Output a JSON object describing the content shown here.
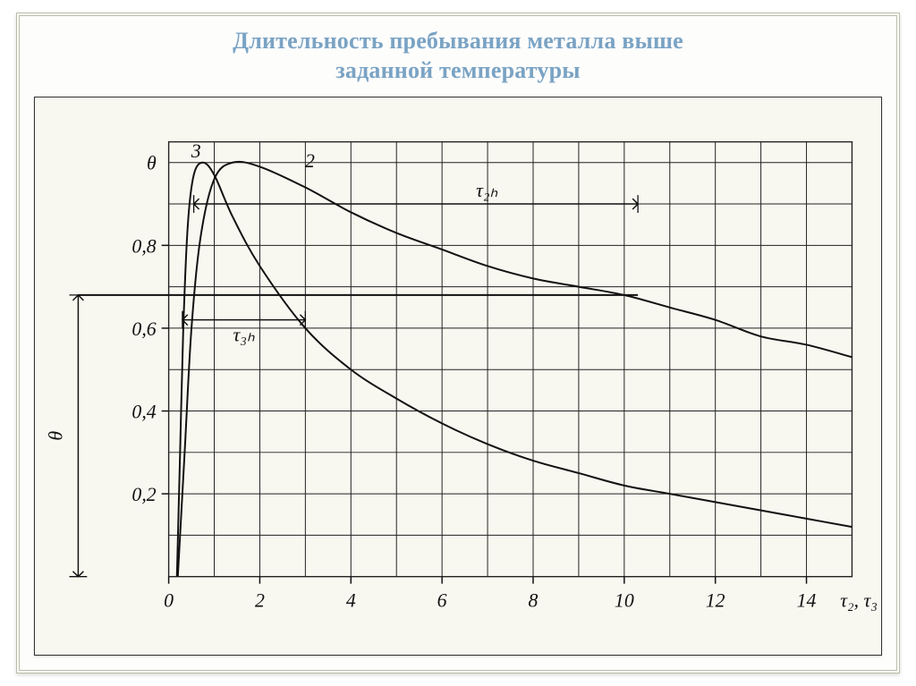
{
  "title_line1": "Длительность пребывания металла выше",
  "title_line2": "заданной температуры",
  "chart": {
    "type": "line",
    "background_color": "#f8f7f0",
    "grid_color": "#222222",
    "axis_color": "#111111",
    "curve_color": "#111111",
    "curve_width": 2.0,
    "xlim": [
      0,
      15
    ],
    "ylim": [
      0,
      1.05
    ],
    "xtick_labels": [
      "0",
      "2",
      "4",
      "6",
      "8",
      "10",
      "12",
      "14"
    ],
    "xtick_values": [
      0,
      2,
      4,
      6,
      8,
      10,
      12,
      14
    ],
    "ytick_labels": [
      "0,2",
      "0,4",
      "0,6",
      "0,8"
    ],
    "ytick_values": [
      0.2,
      0.4,
      0.6,
      0.8
    ],
    "y_top_label": "θ",
    "x_axis_suffix": "τ₂, τ₃",
    "y_axis_marker_label": "θ",
    "annotation_tau2": "τ₂ₕ",
    "annotation_tau3": "τ₃ₕ",
    "curve_label_2": "2",
    "curve_label_3": "3",
    "theta_ref": 0.68,
    "tau2_start": 0.55,
    "tau2_end": 10.3,
    "tau3_start": 0.3,
    "tau3_end": 3.0,
    "tick_fontsize": 22,
    "label_fontsize": 22,
    "series_2": [
      [
        0.2,
        0.0
      ],
      [
        0.35,
        0.3
      ],
      [
        0.5,
        0.6
      ],
      [
        0.7,
        0.82
      ],
      [
        1.0,
        0.96
      ],
      [
        1.4,
        1.0
      ],
      [
        2.0,
        0.99
      ],
      [
        3.0,
        0.94
      ],
      [
        4.0,
        0.88
      ],
      [
        5.0,
        0.83
      ],
      [
        6.0,
        0.79
      ],
      [
        7.0,
        0.75
      ],
      [
        8.0,
        0.72
      ],
      [
        9.0,
        0.7
      ],
      [
        10.0,
        0.68
      ],
      [
        11.0,
        0.65
      ],
      [
        12.0,
        0.62
      ],
      [
        13.0,
        0.58
      ],
      [
        14.0,
        0.56
      ],
      [
        15.0,
        0.53
      ]
    ],
    "series_3": [
      [
        0.18,
        0.0
      ],
      [
        0.25,
        0.3
      ],
      [
        0.32,
        0.6
      ],
      [
        0.42,
        0.85
      ],
      [
        0.55,
        0.97
      ],
      [
        0.75,
        1.0
      ],
      [
        1.0,
        0.97
      ],
      [
        1.4,
        0.87
      ],
      [
        2.0,
        0.75
      ],
      [
        3.0,
        0.6
      ],
      [
        4.0,
        0.5
      ],
      [
        5.0,
        0.43
      ],
      [
        6.0,
        0.37
      ],
      [
        7.0,
        0.32
      ],
      [
        8.0,
        0.28
      ],
      [
        9.0,
        0.25
      ],
      [
        10.0,
        0.22
      ],
      [
        11.0,
        0.2
      ],
      [
        12.0,
        0.18
      ],
      [
        13.0,
        0.16
      ],
      [
        14.0,
        0.14
      ],
      [
        15.0,
        0.12
      ]
    ]
  }
}
